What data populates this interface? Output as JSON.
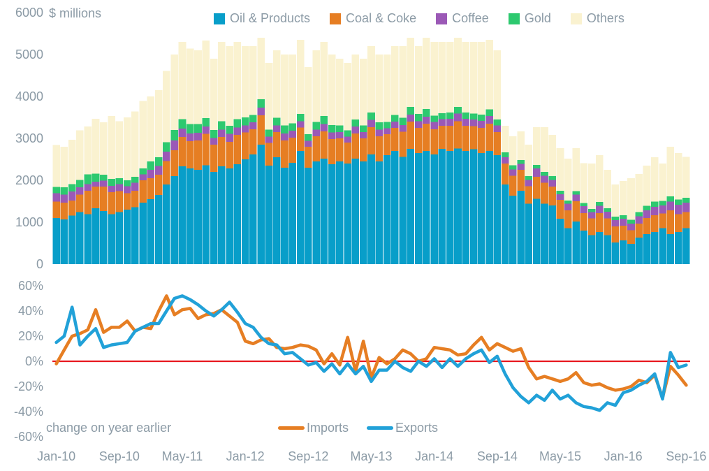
{
  "style": {
    "text_color": "#8C9BA6",
    "background": "#FFFFFF"
  },
  "bar_chart": {
    "units": "$ millions"
  },
  "line_chart": {
    "note": "change on year earlier"
  },
  "chart_data": [
    {
      "type": "bar",
      "stacked": true,
      "title": "",
      "ylabel": "$ millions",
      "ylim": [
        0,
        6000
      ],
      "grid": false,
      "legend_position": "top",
      "y_ticks": [
        {
          "label": "0",
          "value": 0
        },
        {
          "label": "1000",
          "value": 1000
        },
        {
          "label": "2000",
          "value": 2000
        },
        {
          "label": "3000",
          "value": 3000
        },
        {
          "label": "4000",
          "value": 4000
        },
        {
          "label": "5000",
          "value": 5000
        },
        {
          "label": "6000",
          "value": 6000
        }
      ],
      "x_ticks": [
        {
          "index": 0,
          "label": "Jan-10"
        },
        {
          "index": 8,
          "label": "Sep-10"
        },
        {
          "index": 16,
          "label": "May-11"
        },
        {
          "index": 24,
          "label": "Jan-12"
        },
        {
          "index": 32,
          "label": "Sep-12"
        },
        {
          "index": 40,
          "label": "May-13"
        },
        {
          "index": 48,
          "label": "Jan-14"
        },
        {
          "index": 56,
          "label": "Sep-14"
        },
        {
          "index": 64,
          "label": "May-15"
        },
        {
          "index": 72,
          "label": "Jan-16"
        },
        {
          "index": 80,
          "label": "Sep-16"
        }
      ],
      "categories": [
        "Jan-10",
        "Feb-10",
        "Mar-10",
        "Apr-10",
        "May-10",
        "Jun-10",
        "Jul-10",
        "Aug-10",
        "Sep-10",
        "Oct-10",
        "Nov-10",
        "Dec-10",
        "Jan-11",
        "Feb-11",
        "Mar-11",
        "Apr-11",
        "May-11",
        "Jun-11",
        "Jul-11",
        "Aug-11",
        "Sep-11",
        "Oct-11",
        "Nov-11",
        "Dec-11",
        "Jan-12",
        "Feb-12",
        "Mar-12",
        "Apr-12",
        "May-12",
        "Jun-12",
        "Jul-12",
        "Aug-12",
        "Sep-12",
        "Oct-12",
        "Nov-12",
        "Dec-12",
        "Jan-13",
        "Feb-13",
        "Mar-13",
        "Apr-13",
        "May-13",
        "Jun-13",
        "Jul-13",
        "Aug-13",
        "Sep-13",
        "Oct-13",
        "Nov-13",
        "Dec-13",
        "Jan-14",
        "Feb-14",
        "Mar-14",
        "Apr-14",
        "May-14",
        "Jun-14",
        "Jul-14",
        "Aug-14",
        "Sep-14",
        "Oct-14",
        "Nov-14",
        "Dec-14",
        "Jan-15",
        "Feb-15",
        "Mar-15",
        "Apr-15",
        "May-15",
        "Jun-15",
        "Jul-15",
        "Aug-15",
        "Sep-15",
        "Oct-15",
        "Nov-15",
        "Dec-15",
        "Jan-16",
        "Feb-16",
        "Mar-16",
        "Apr-16",
        "May-16",
        "Jun-16",
        "Jul-16",
        "Aug-16",
        "Sep-16"
      ],
      "series": [
        {
          "name": "Oil & Products",
          "color": "#089EC9",
          "values": [
            1100,
            1070,
            1160,
            1240,
            1190,
            1330,
            1270,
            1190,
            1240,
            1300,
            1360,
            1470,
            1550,
            1650,
            1900,
            2100,
            2330,
            2280,
            2250,
            2360,
            2200,
            2330,
            2280,
            2380,
            2500,
            2620,
            2850,
            2350,
            2550,
            2300,
            2420,
            2700,
            2300,
            2450,
            2520,
            2380,
            2450,
            2400,
            2520,
            2450,
            2620,
            2450,
            2600,
            2700,
            2560,
            2750,
            2650,
            2700,
            2620,
            2750,
            2700,
            2760,
            2700,
            2740,
            2650,
            2700,
            2600,
            1900,
            1630,
            1750,
            1440,
            1560,
            1440,
            1400,
            1080,
            860,
            1020,
            800,
            690,
            770,
            690,
            520,
            570,
            480,
            630,
            720,
            770,
            860,
            720,
            770,
            860
          ]
        },
        {
          "name": "Coal & Coke",
          "color": "#E67E23",
          "values": [
            390,
            400,
            360,
            420,
            560,
            520,
            580,
            530,
            500,
            390,
            390,
            530,
            500,
            480,
            560,
            620,
            700,
            650,
            700,
            750,
            650,
            700,
            640,
            700,
            640,
            600,
            700,
            540,
            600,
            650,
            600,
            560,
            500,
            600,
            650,
            600,
            550,
            500,
            600,
            550,
            650,
            600,
            500,
            550,
            600,
            650,
            600,
            650,
            600,
            550,
            600,
            650,
            600,
            550,
            600,
            650,
            550,
            500,
            480,
            500,
            420,
            520,
            500,
            450,
            450,
            420,
            480,
            420,
            400,
            450,
            400,
            380,
            350,
            330,
            340,
            380,
            400,
            350,
            560,
            420,
            380
          ]
        },
        {
          "name": "Coffee",
          "color": "#9B59B6",
          "values": [
            200,
            190,
            210,
            170,
            160,
            120,
            140,
            150,
            170,
            170,
            190,
            140,
            200,
            210,
            220,
            230,
            200,
            190,
            180,
            170,
            160,
            180,
            190,
            180,
            170,
            160,
            180,
            150,
            160,
            170,
            160,
            150,
            140,
            160,
            170,
            160,
            150,
            140,
            160,
            150,
            170,
            160,
            140,
            150,
            160,
            170,
            160,
            170,
            170,
            160,
            170,
            180,
            170,
            160,
            170,
            180,
            160,
            150,
            150,
            140,
            150,
            200,
            170,
            160,
            140,
            160,
            160,
            160,
            150,
            170,
            160,
            150,
            160,
            160,
            170,
            180,
            200,
            190,
            210,
            230,
            230
          ]
        },
        {
          "name": "Gold",
          "color": "#2DC96F",
          "values": [
            150,
            170,
            180,
            180,
            230,
            190,
            140,
            160,
            140,
            140,
            140,
            140,
            200,
            210,
            230,
            250,
            230,
            220,
            210,
            200,
            190,
            200,
            190,
            200,
            190,
            180,
            200,
            170,
            180,
            190,
            180,
            170,
            160,
            180,
            190,
            180,
            160,
            150,
            170,
            160,
            180,
            170,
            150,
            160,
            170,
            180,
            170,
            180,
            150,
            140,
            150,
            160,
            150,
            140,
            150,
            160,
            140,
            120,
            100,
            90,
            90,
            90,
            90,
            90,
            80,
            80,
            80,
            80,
            80,
            90,
            80,
            80,
            90,
            90,
            100,
            110,
            120,
            110,
            130,
            120,
            110
          ]
        },
        {
          "name": "Others",
          "color": "#FAF2D0",
          "values": [
            1000,
            970,
            1060,
            1180,
            1140,
            1310,
            1250,
            1500,
            1360,
            1500,
            1560,
            1610,
            1550,
            1600,
            1700,
            1800,
            1840,
            1800,
            1760,
            1850,
            1700,
            1890,
            1900,
            1840,
            1700,
            1640,
            1470,
            1590,
            1610,
            1690,
            1640,
            1770,
            1600,
            1710,
            1770,
            1680,
            1590,
            1610,
            1550,
            1590,
            1580,
            1620,
            1610,
            1640,
            1710,
            1650,
            1620,
            1700,
            1760,
            1700,
            1680,
            1650,
            1680,
            1710,
            1730,
            1660,
            1650,
            630,
            690,
            685,
            750,
            900,
            1070,
            980,
            1020,
            1000,
            1030,
            950,
            1080,
            1120,
            920,
            770,
            810,
            990,
            910,
            960,
            1060,
            890,
            1180,
            1110,
            980
          ]
        }
      ]
    },
    {
      "type": "line",
      "title": "",
      "ylabel": "change on year earlier",
      "ylim": [
        -60,
        60
      ],
      "grid": false,
      "zero_line_color": "#E8191F",
      "legend_position": "bottom",
      "y_ticks": [
        {
          "label": "60%",
          "value": 60
        },
        {
          "label": "40%",
          "value": 40
        },
        {
          "label": "20%",
          "value": 20
        },
        {
          "label": "0%",
          "value": 0
        },
        {
          "label": "-20%",
          "value": -20
        },
        {
          "label": "-40%",
          "value": -40
        },
        {
          "label": "-60%",
          "value": -60
        }
      ],
      "series": [
        {
          "name": "Imports",
          "color": "#E67E23",
          "values": [
            -2,
            9,
            20,
            22,
            25,
            41,
            23,
            27,
            27,
            32,
            24,
            27,
            26,
            40,
            52,
            37,
            41,
            42,
            34,
            37,
            38,
            41,
            36,
            31,
            16,
            14,
            17,
            18,
            11,
            10,
            11,
            13,
            12,
            9,
            -2,
            6,
            -3,
            19,
            -8,
            16,
            -13,
            3,
            -2,
            2,
            9,
            6,
            0,
            2,
            11,
            10,
            9,
            5,
            6,
            13,
            19,
            9,
            14,
            11,
            8,
            10,
            -5,
            -14,
            -12,
            -14,
            -16,
            -14,
            -9,
            -17,
            -19,
            -18,
            -21,
            -23,
            -22,
            -20,
            -15,
            -17,
            -11,
            -29,
            -4,
            -11,
            -19
          ]
        },
        {
          "name": "Exports",
          "color": "#21A1D8",
          "values": [
            15,
            20,
            43,
            13,
            20,
            26,
            11,
            13,
            14,
            15,
            24,
            27,
            30,
            30,
            40,
            50,
            52,
            49,
            45,
            40,
            36,
            41,
            47,
            39,
            30,
            27,
            19,
            14,
            13,
            6,
            7,
            2,
            -3,
            -1,
            -8,
            -2,
            -10,
            -2,
            -10,
            -4,
            -16,
            -7,
            -7,
            0,
            -5,
            -8,
            0,
            -4,
            2,
            -5,
            2,
            -4,
            2,
            6,
            9,
            -1,
            4,
            -10,
            -21,
            -28,
            -33,
            -27,
            -31,
            -23,
            -30,
            -27,
            -33,
            -36,
            -37,
            -39,
            -33,
            -35,
            -25,
            -23,
            -19,
            -16,
            -10,
            -30,
            7,
            -5,
            -3
          ]
        }
      ]
    }
  ]
}
